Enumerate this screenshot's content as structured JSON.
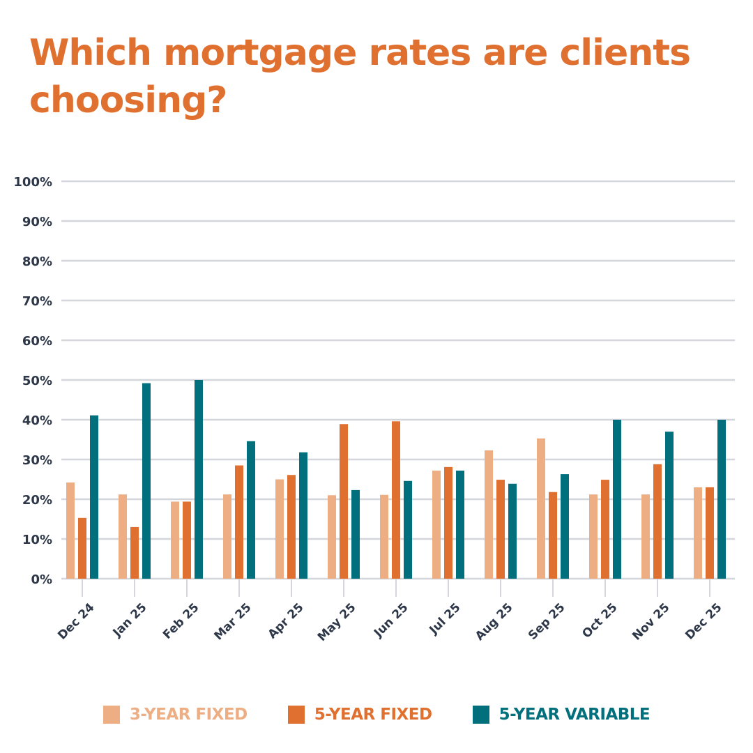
{
  "title": "Which mortgage rates are clients choosing?",
  "chart_data": {
    "type": "bar",
    "title": "Which mortgage rates are clients choosing?",
    "xlabel": "",
    "ylabel": "",
    "ylim": [
      0,
      100
    ],
    "yticks": [
      "0%",
      "10%",
      "20%",
      "30%",
      "40%",
      "50%",
      "60%",
      "70%",
      "80%",
      "90%",
      "100%"
    ],
    "grid": true,
    "legend_position": "bottom",
    "categories": [
      "Dec 24",
      "Jan 25",
      "Feb 25",
      "Mar 25",
      "Apr 25",
      "May 25",
      "Jun 25",
      "Jul 25",
      "Aug 25",
      "Sep 25",
      "Oct 25",
      "Nov 25",
      "Dec 25"
    ],
    "series": [
      {
        "name": "3-YEAR FIXED",
        "color": "#edae84",
        "values": [
          24.2,
          21.2,
          19.4,
          21.2,
          25.0,
          21.0,
          21.1,
          27.2,
          32.3,
          35.3,
          21.2,
          21.2,
          23.0
        ]
      },
      {
        "name": "5-YEAR FIXED",
        "color": "#e07030",
        "values": [
          15.3,
          13.0,
          19.4,
          28.5,
          26.1,
          38.9,
          39.6,
          28.1,
          24.9,
          21.8,
          24.9,
          28.8,
          23.0
        ]
      },
      {
        "name": "5-YEAR VARIABLE",
        "color": "#02707c",
        "values": [
          41.1,
          49.2,
          50.0,
          34.6,
          31.8,
          22.3,
          24.6,
          27.2,
          23.9,
          26.3,
          40.0,
          37.0,
          40.0
        ]
      }
    ]
  },
  "colors": {
    "title": "#e07030",
    "axis_text": "#2d3748",
    "grid": "#d3d6db"
  }
}
